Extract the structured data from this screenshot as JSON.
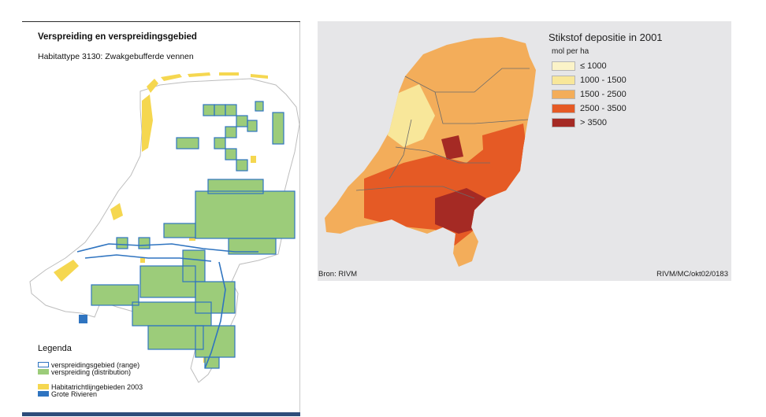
{
  "left_map": {
    "title": "Verspreiding en verspreidingsgebied",
    "subtitle": "Habitattype 3130: Zwakgebufferde vennen",
    "legend": {
      "title": "Legenda",
      "items": [
        {
          "label": "verspreidingsgebied (range)",
          "color": "#2f74c0"
        },
        {
          "label": "verspreiding (distribution)",
          "color": "#9ccc7a"
        },
        {
          "label": "Habitatrichtlijngebieden 2003",
          "color": "#f5d750"
        },
        {
          "label": "Grote Rivieren",
          "color": "#2f74c0"
        }
      ]
    }
  },
  "right_map": {
    "title": "Stikstof depositie in 2001",
    "unit": "mol per ha",
    "legend": [
      {
        "label": "≤ 1000",
        "color": "#fbf3c8"
      },
      {
        "label": "1000 - 1500",
        "color": "#f8e79a"
      },
      {
        "label": "1500 - 2500",
        "color": "#f3ad5a"
      },
      {
        "label": "2500 - 3500",
        "color": "#e55a25"
      },
      {
        "label": "> 3500",
        "color": "#a52a24"
      }
    ],
    "source": "Bron: RIVM",
    "code": "RIVM/MC/okt02/0183"
  }
}
